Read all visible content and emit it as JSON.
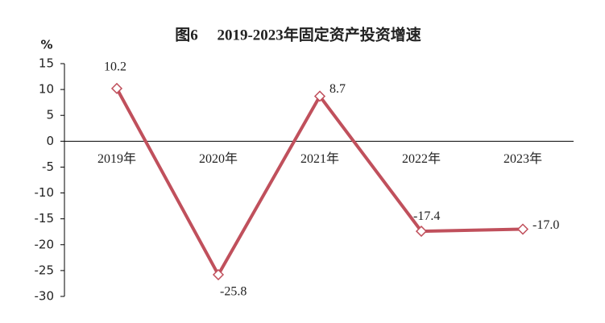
{
  "chart_data": {
    "type": "line",
    "title": "图6　 2019-2023年固定资产投资增速",
    "y_unit": "%",
    "categories": [
      "2019年",
      "2020年",
      "2021年",
      "2022年",
      "2023年"
    ],
    "series": [
      {
        "color": "#c0505c",
        "values": [
          10.2,
          -25.8,
          8.7,
          -17.4,
          -17.0
        ],
        "value_labels": [
          "10.2",
          "-25.8",
          "8.7",
          "-17.4",
          "-17.0"
        ]
      }
    ],
    "ylim": [
      -30,
      15
    ],
    "yticks": [
      15,
      10,
      5,
      0,
      -5,
      -10,
      -15,
      -20,
      -25,
      -30
    ]
  }
}
